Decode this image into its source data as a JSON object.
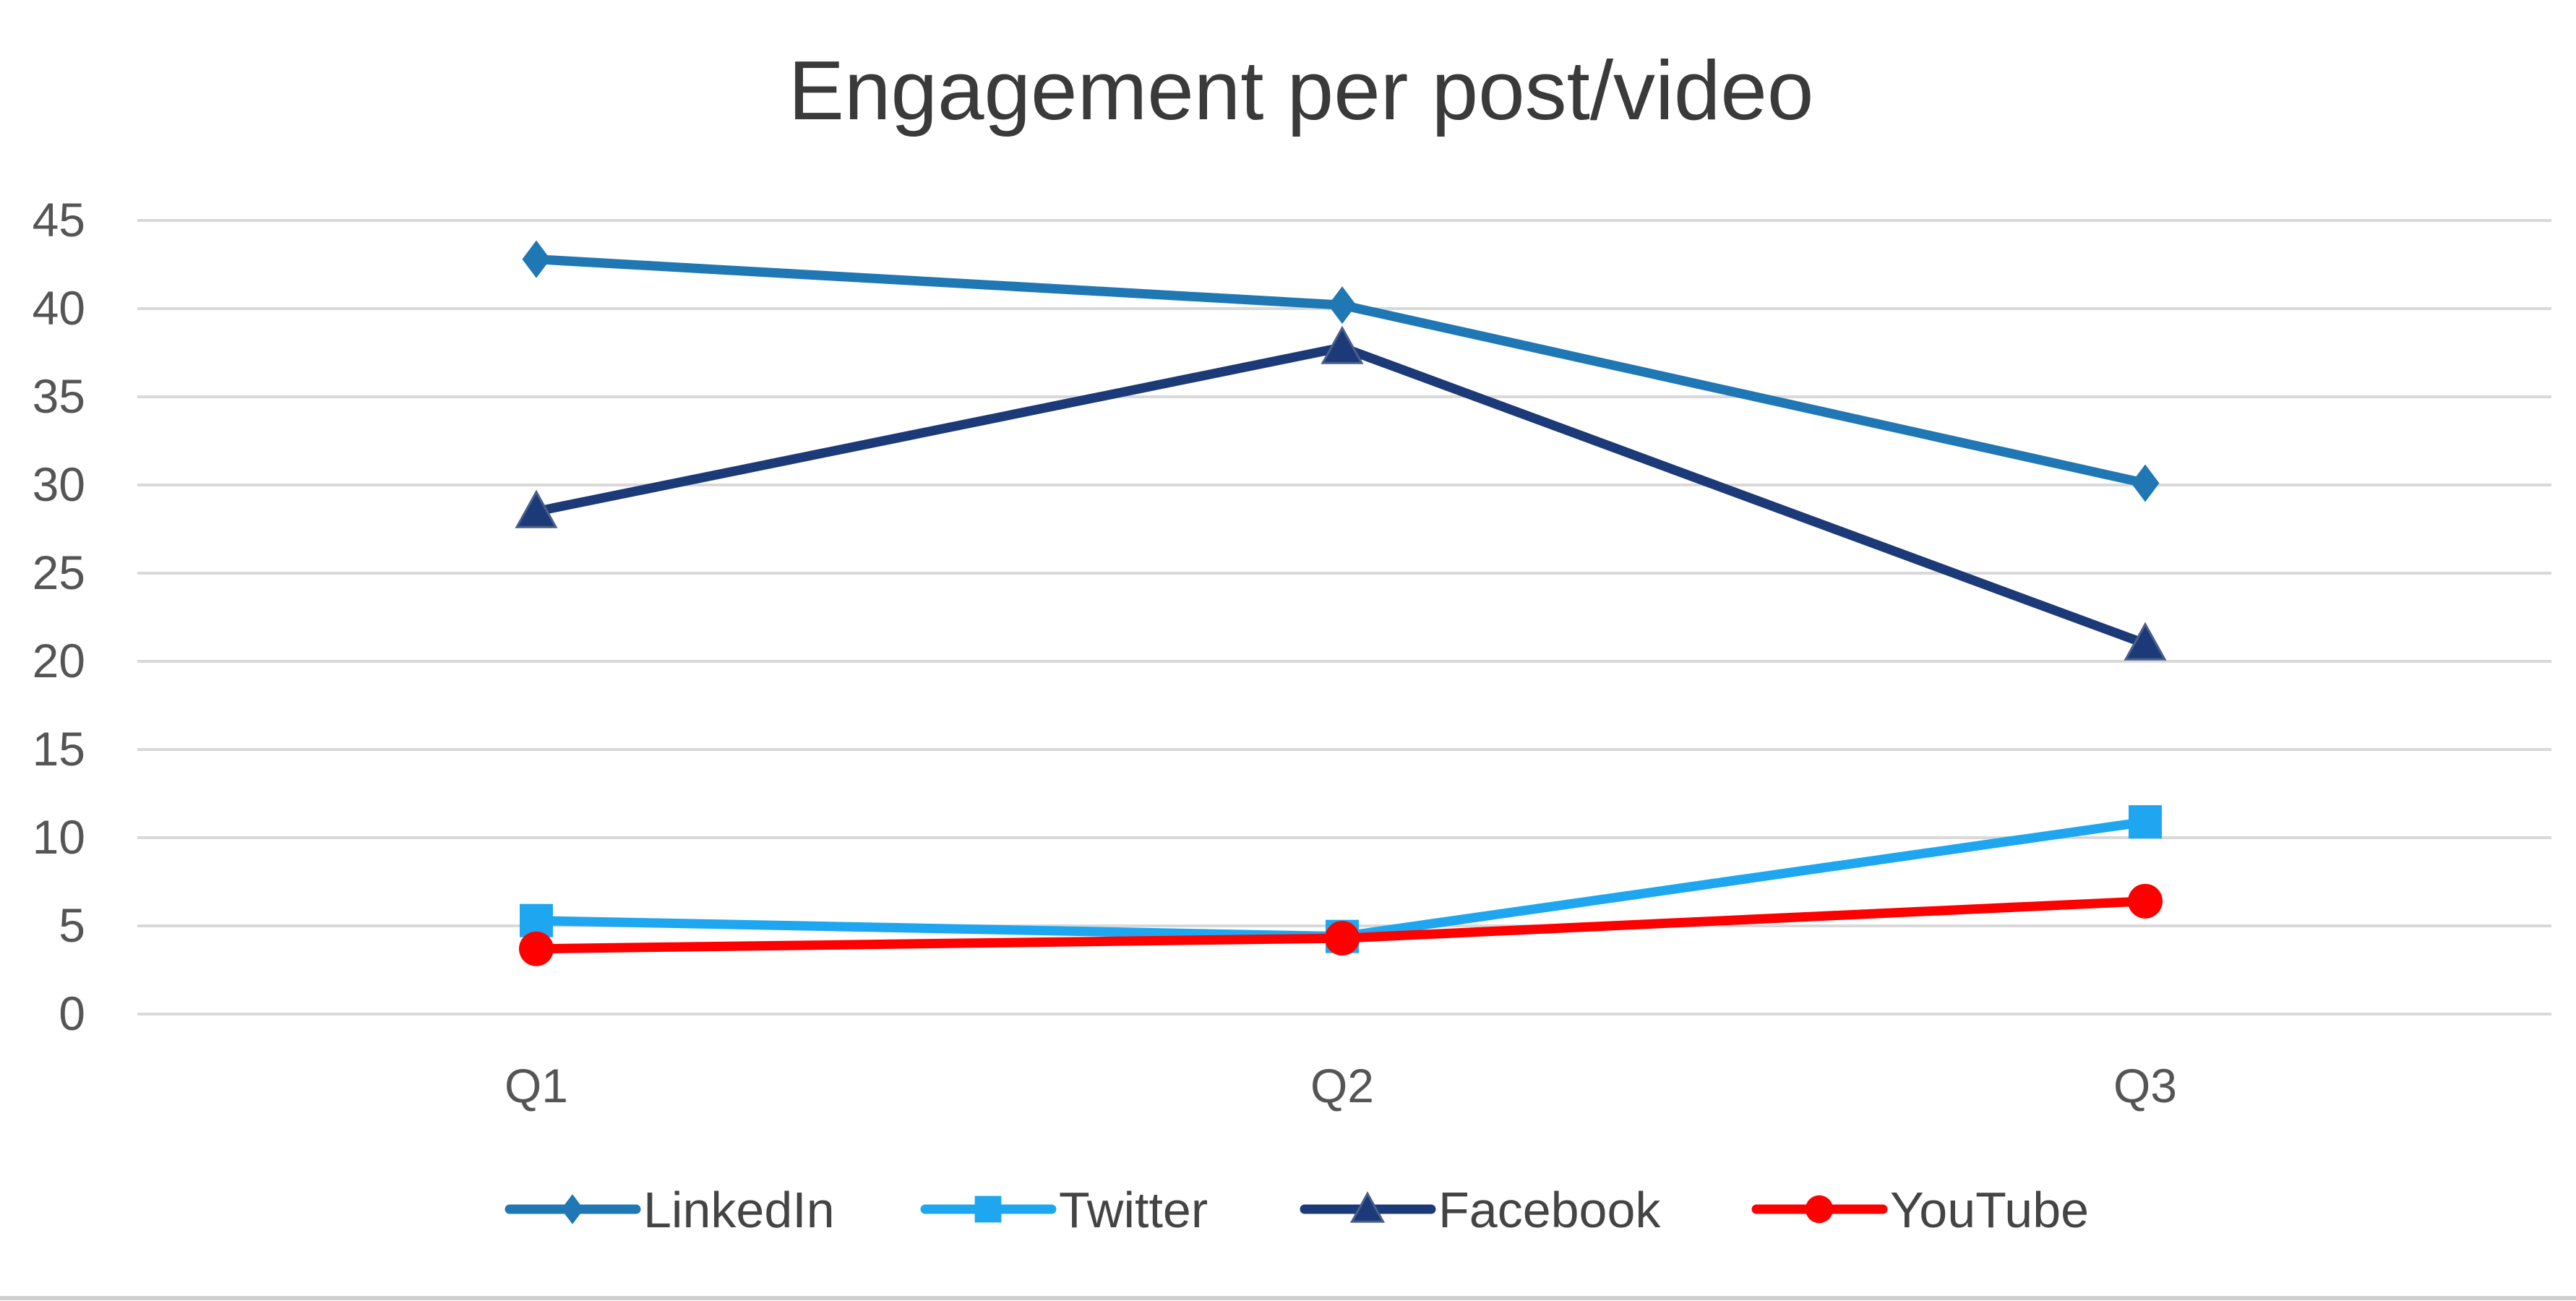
{
  "chart_data": {
    "type": "line",
    "title": "Engagement per post/video",
    "xlabel": "",
    "ylabel": "",
    "categories": [
      "Q1",
      "Q2",
      "Q3"
    ],
    "ylim": [
      0,
      45
    ],
    "yticks": [
      0,
      5,
      10,
      15,
      20,
      25,
      30,
      35,
      40,
      45
    ],
    "grid": true,
    "legend_position": "bottom",
    "series": [
      {
        "name": "LinkedIn",
        "values": [
          42.8,
          40.2,
          30.1
        ],
        "color": "#1f77b4",
        "marker": "diamond"
      },
      {
        "name": "Twitter",
        "values": [
          5.3,
          4.4,
          10.9
        ],
        "color": "#1ea7f0",
        "marker": "square"
      },
      {
        "name": "Facebook",
        "values": [
          28.5,
          37.8,
          21.0
        ],
        "color": "#1c3a78",
        "marker": "triangle"
      },
      {
        "name": "YouTube",
        "values": [
          3.7,
          4.3,
          6.4
        ],
        "color": "#ff0000",
        "marker": "circle"
      }
    ]
  }
}
